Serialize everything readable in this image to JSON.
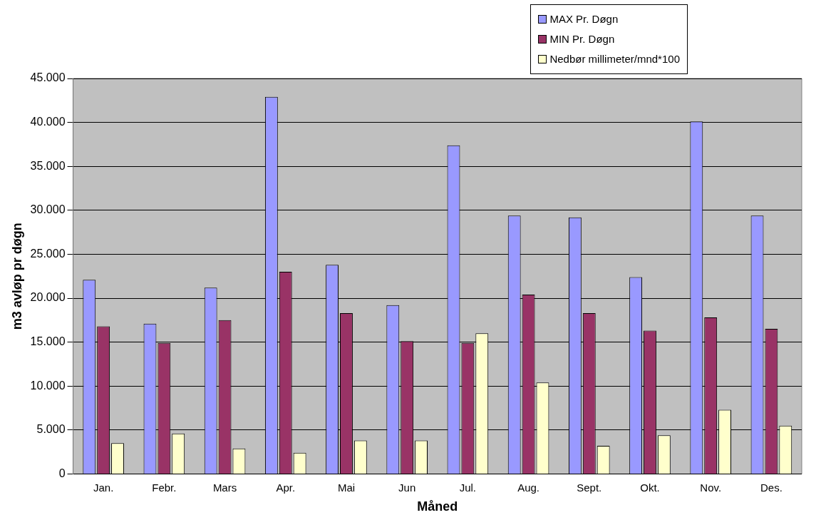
{
  "chart_data": {
    "type": "bar",
    "xlabel": "Måned",
    "ylabel": "m3 avløp pr døgn",
    "categories": [
      "Jan.",
      "Febr.",
      "Mars",
      "Apr.",
      "Mai",
      "Jun",
      "Jul.",
      "Aug.",
      "Sept.",
      "Okt.",
      "Nov.",
      "Des."
    ],
    "series": [
      {
        "name": "MAX Pr. Døgn",
        "color": "#9999ff",
        "values": [
          22100,
          17100,
          21200,
          42900,
          23800,
          19200,
          37400,
          29400,
          29200,
          22400,
          40100,
          29400
        ]
      },
      {
        "name": "MIN Pr. Døgn",
        "color": "#993366",
        "values": [
          16800,
          14900,
          17500,
          23000,
          18300,
          15100,
          14900,
          20400,
          18300,
          16300,
          17800,
          16500
        ]
      },
      {
        "name": "Nedbør millimeter/mnd*100",
        "color": "#ffffcc",
        "values": [
          3500,
          4600,
          2900,
          2400,
          3800,
          3800,
          16000,
          10400,
          3200,
          4400,
          7300,
          5500
        ]
      }
    ],
    "ylim": [
      0,
      45000
    ],
    "yticks": [
      {
        "value": 0,
        "label": "0"
      },
      {
        "value": 5000,
        "label": "5.000"
      },
      {
        "value": 10000,
        "label": "10.000"
      },
      {
        "value": 15000,
        "label": "15.000"
      },
      {
        "value": 20000,
        "label": "20.000"
      },
      {
        "value": 25000,
        "label": "25.000"
      },
      {
        "value": 30000,
        "label": "30.000"
      },
      {
        "value": 35000,
        "label": "35.000"
      },
      {
        "value": 40000,
        "label": "40.000"
      },
      {
        "value": 45000,
        "label": "45.000"
      }
    ],
    "grid": "y",
    "legend": "top right"
  }
}
